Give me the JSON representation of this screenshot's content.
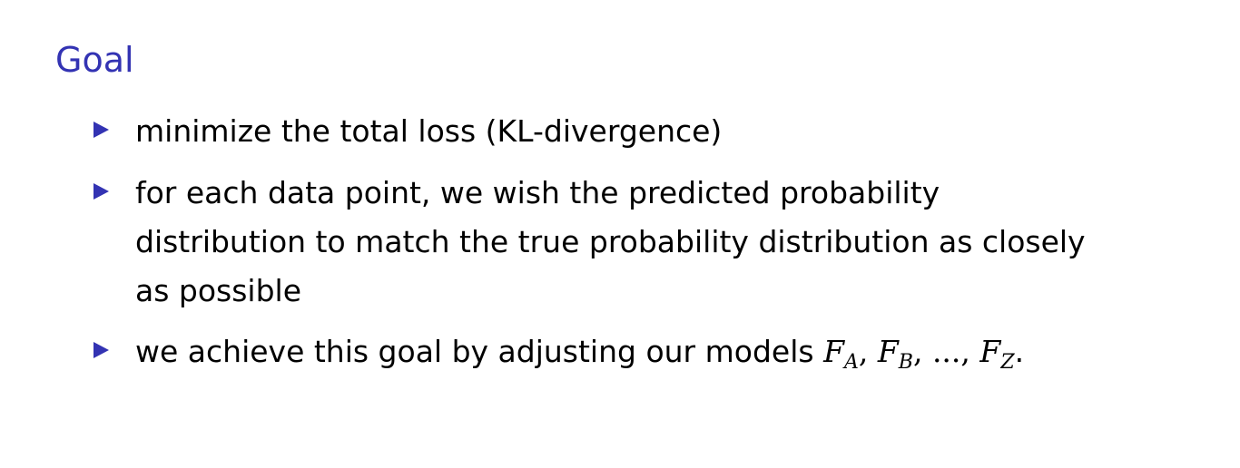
{
  "slide": {
    "title": "Goal",
    "bullet_color": "#3333b3",
    "title_color": "#3333b3",
    "bullets": [
      {
        "text": "minimize the total loss (KL-divergence)"
      },
      {
        "text": "for each data point, we wish the predicted probability distribution to match the true probability distribution as closely as possible"
      },
      {
        "text_prefix": "we achieve this goal by adjusting our models ",
        "models": [
          {
            "base": "F",
            "sub": "A"
          },
          {
            "base": "F",
            "sub": "B"
          },
          {
            "base": "F",
            "sub": "Z"
          }
        ],
        "ellipsis": "...",
        "separator": ",",
        "text_suffix": "."
      }
    ]
  }
}
